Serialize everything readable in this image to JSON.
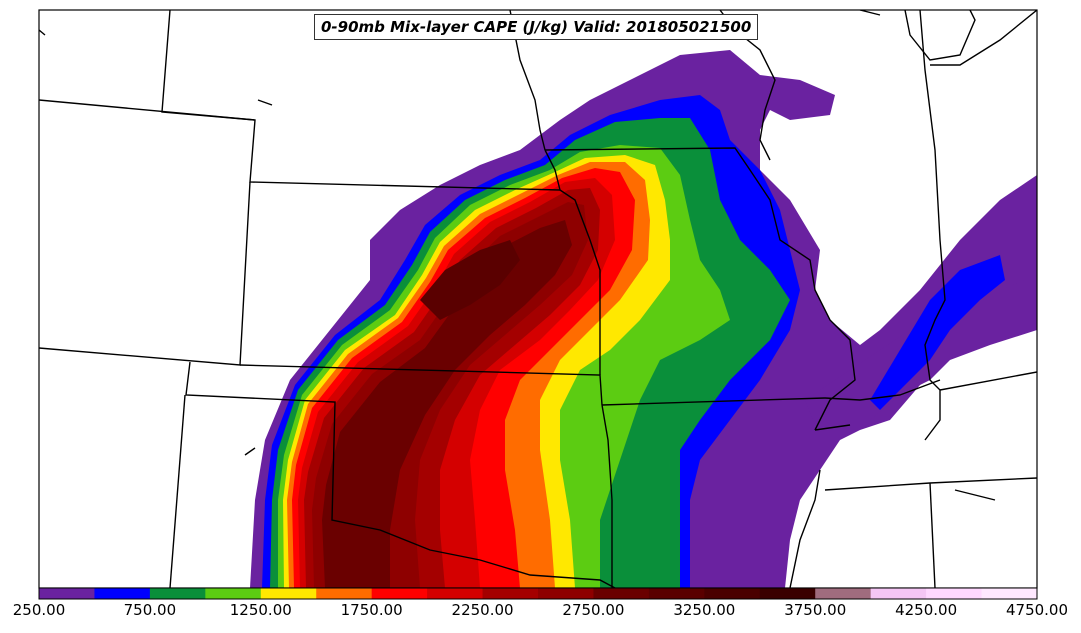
{
  "map": {
    "title": "0-90mb Mix-layer CAPE (J/kg) Valid: 201805021500"
  },
  "colorbar": {
    "ticks": [
      "250.00",
      "750.00",
      "1250.00",
      "1750.00",
      "2250.00",
      "2750.00",
      "3250.00",
      "3750.00",
      "4250.00",
      "4750.00"
    ],
    "colors": [
      "#6a22a0",
      "#0000ff",
      "#0a8f3a",
      "#5ccc12",
      "#ffe800",
      "#ff6c00",
      "#ff0000",
      "#d40000",
      "#a40000",
      "#8e0000",
      "#6a0000",
      "#5a0000",
      "#4a0000",
      "#3a0000",
      "#a06c7e",
      "#f5c6f5",
      "#ffd8ff",
      "#ffe8ff"
    ]
  }
}
